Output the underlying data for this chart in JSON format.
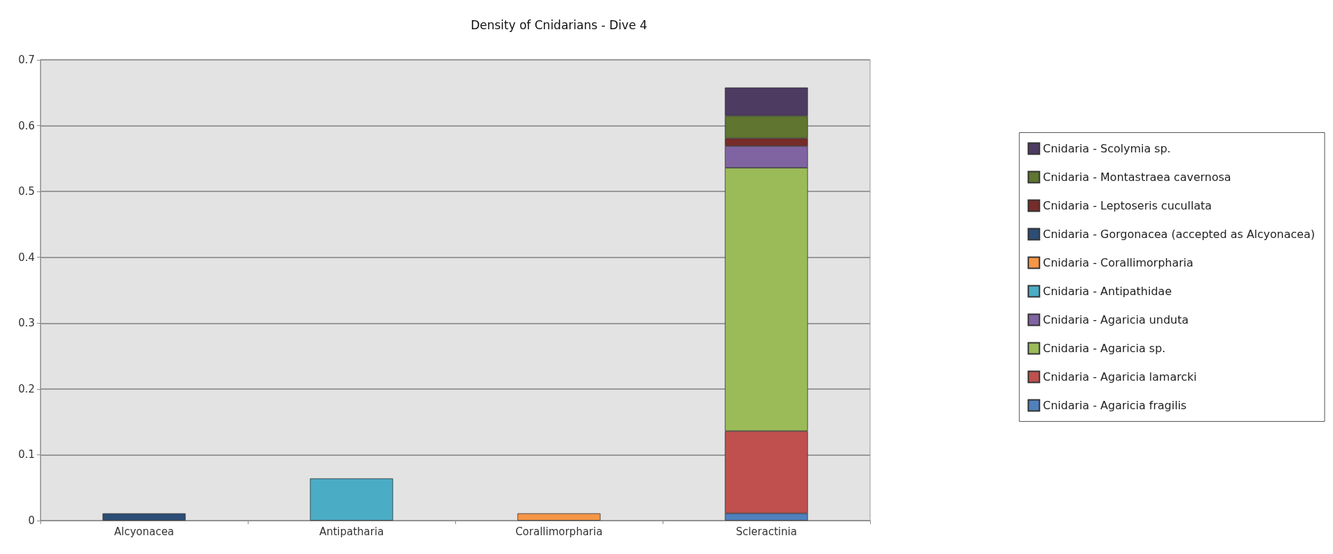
{
  "chart_data": {
    "type": "bar",
    "title": "Density of Cnidarians - Dive 4",
    "categories": [
      "Alcyonacea",
      "Antipatharia",
      "Corallimorpharia",
      "Scleractinia"
    ],
    "stacked": true,
    "ylim": [
      0,
      0.7
    ],
    "yticks": [
      0,
      0.1,
      0.2,
      0.3,
      0.4,
      0.5,
      0.6,
      0.7
    ],
    "grid": "y",
    "legend": "right",
    "series": [
      {
        "name": "Cnidaria - Agaricia fragilis",
        "color": "#4f81bd",
        "values": [
          null,
          null,
          null,
          0.011
        ]
      },
      {
        "name": "Cnidaria - Agaricia lamarcki",
        "color": "#c0504d",
        "values": [
          null,
          null,
          null,
          0.125
        ]
      },
      {
        "name": "Cnidaria - Agaricia sp.",
        "color": "#9bbb59",
        "values": [
          null,
          null,
          null,
          0.4
        ]
      },
      {
        "name": "Cnidaria - Agaricia unduta",
        "color": "#8064a2",
        "values": [
          null,
          null,
          null,
          0.033
        ]
      },
      {
        "name": "Cnidaria - Antipathidae",
        "color": "#4bacc6",
        "values": [
          null,
          0.064,
          null,
          null
        ]
      },
      {
        "name": "Cnidaria - Corallimorpharia",
        "color": "#f79646",
        "values": [
          null,
          null,
          0.011,
          null
        ]
      },
      {
        "name": "Cnidaria - Gorgonacea (accepted as Alcyonacea)",
        "color": "#2c4d75",
        "values": [
          0.011,
          null,
          null,
          null
        ]
      },
      {
        "name": "Cnidaria - Leptoseris cucullata",
        "color": "#772c2a",
        "values": [
          null,
          null,
          null,
          0.012
        ]
      },
      {
        "name": "Cnidaria - Montastraea cavernosa",
        "color": "#5f7530",
        "values": [
          null,
          null,
          null,
          0.034
        ]
      },
      {
        "name": "Cnidaria - Scolymia sp.",
        "color": "#4d3b62",
        "values": [
          null,
          null,
          null,
          0.043
        ]
      }
    ]
  }
}
